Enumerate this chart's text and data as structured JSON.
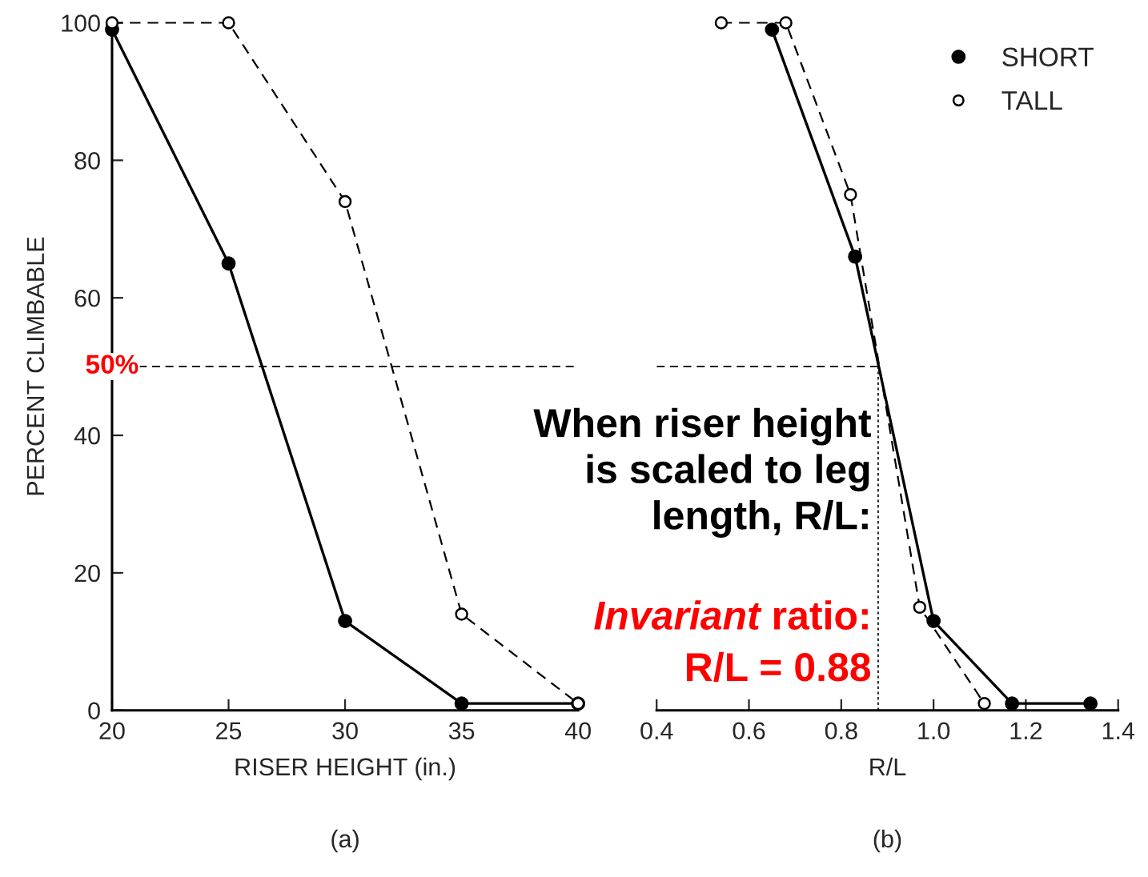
{
  "chart_data": [
    {
      "type": "line",
      "title": "(a)",
      "xlabel": "RISER HEIGHT (in.)",
      "ylabel": "PERCENT CLIMBABLE",
      "x": [
        20,
        25,
        30,
        35,
        40
      ],
      "xlim": [
        20,
        40
      ],
      "xticks": [
        20,
        25,
        30,
        35,
        40
      ],
      "ylim": [
        0,
        100
      ],
      "yticks": [
        0,
        20,
        40,
        60,
        80,
        100
      ],
      "grid": false,
      "series": [
        {
          "color": "#000000",
          "marker": "circle",
          "line_style": "solid",
          "values": [
            99,
            65,
            13,
            1,
            1
          ]
        },
        {
          "color": "#000000",
          "marker": "circle-open",
          "line_style": "dashed",
          "values": [
            100,
            100,
            74,
            14,
            1
          ]
        }
      ],
      "ref_lines": [
        {
          "axis": "y",
          "value": 50,
          "label": "50%",
          "line_style": "dashed"
        }
      ]
    },
    {
      "type": "line",
      "title": "(b)",
      "xlabel": "R/L",
      "xlim": [
        0.4,
        1.4
      ],
      "xticks": [
        0.4,
        0.6,
        0.8,
        {
          "value": 1.0,
          "label": "1.0"
        },
        1.2,
        1.4
      ],
      "ylim": [
        0,
        100
      ],
      "tick_labels": "x",
      "grid": false,
      "legend": "top right",
      "series": [
        {
          "name": "SHORT",
          "color": "#000000",
          "marker": "circle",
          "line_style": "solid",
          "x": [
            0.65,
            0.83,
            1.0,
            1.17,
            1.34
          ],
          "values": [
            99,
            66,
            13,
            1,
            1
          ]
        },
        {
          "name": "TALL",
          "color": "#000000",
          "marker": "circle-open",
          "line_style": "dashed",
          "x": [
            0.54,
            0.68,
            0.82,
            0.97,
            1.11
          ],
          "values": [
            100,
            100,
            75,
            15,
            1
          ]
        }
      ],
      "ref_lines": [
        {
          "axis": "y",
          "value": 50,
          "line_style": "dashed"
        },
        {
          "axis": "x",
          "value": 0.88,
          "line_style": "dotted"
        }
      ],
      "annotations": [
        "When riser height\nis scaled to leg\nlength, R/L:",
        "Invariant ratio:\nR/L = 0.88"
      ]
    }
  ]
}
